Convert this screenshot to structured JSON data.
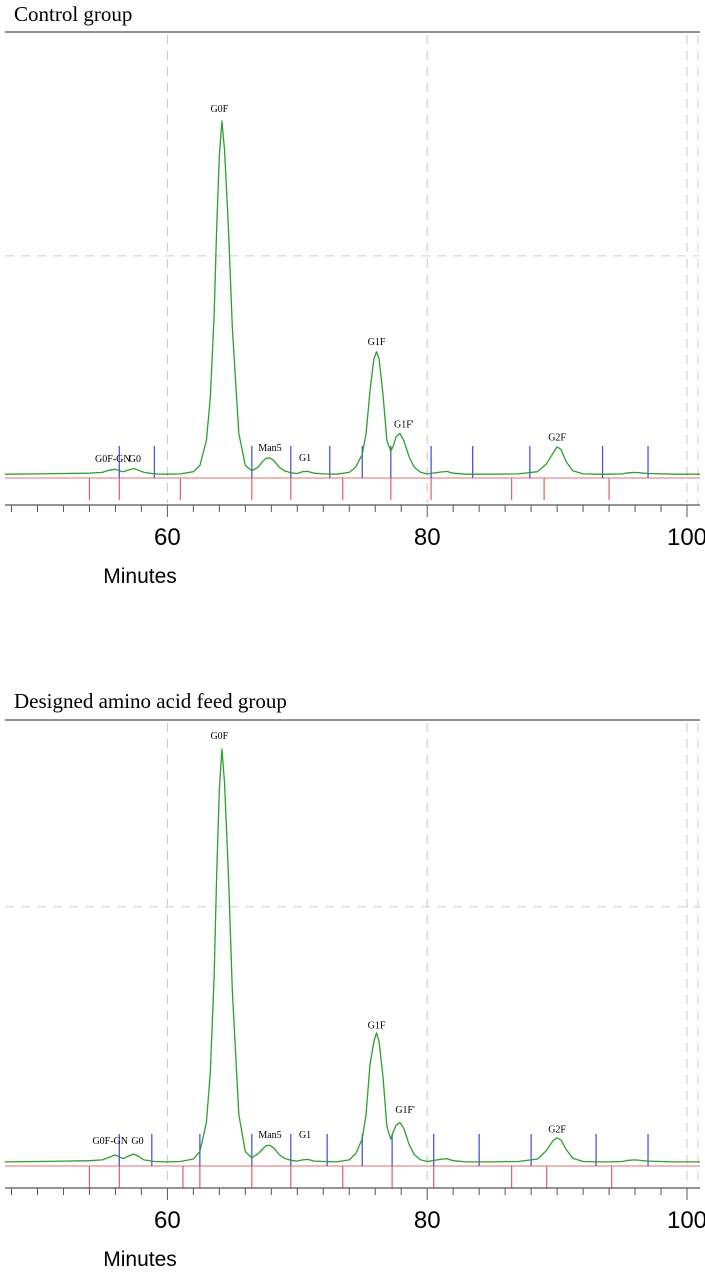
{
  "chart_data": [
    {
      "type": "line",
      "title": "Control group",
      "xlabel": "Minutes",
      "ylabel": "",
      "xlim": [
        47.5,
        101
      ],
      "ylim": [
        0,
        100
      ],
      "x_ticks": [
        60,
        80,
        100
      ],
      "x_tick_labels": [
        "60",
        "80",
        "100"
      ],
      "grid": true,
      "series": [
        {
          "color": "#2ca02c",
          "x": [
            47.5,
            50,
            52,
            54,
            55,
            55.5,
            56,
            56.3,
            56.6,
            57,
            57.4,
            57.8,
            58.2,
            59,
            60,
            61,
            62,
            62.5,
            63,
            63.3,
            63.6,
            63.8,
            64,
            64.2,
            64.4,
            64.7,
            65,
            65.5,
            66,
            66.5,
            67,
            67.3,
            67.6,
            67.9,
            68.2,
            68.6,
            69,
            69.5,
            70,
            70.4,
            70.8,
            71.3,
            72,
            73,
            74,
            74.5,
            75,
            75.3,
            75.6,
            75.9,
            76.1,
            76.3,
            76.6,
            76.9,
            77.2,
            77.4,
            77.6,
            77.9,
            78.2,
            78.6,
            79,
            79.5,
            80,
            81,
            81.5,
            82,
            83,
            85,
            87,
            88.5,
            89.2,
            89.7,
            90,
            90.3,
            90.7,
            91.2,
            92,
            93,
            94,
            95,
            95.5,
            96,
            97,
            99,
            101
          ],
          "y": [
            0.5,
            0.6,
            0.7,
            0.8,
            1.0,
            1.6,
            1.9,
            1.5,
            1.2,
            1.7,
            2.1,
            1.6,
            1.0,
            0.6,
            0.5,
            0.6,
            1.2,
            3.0,
            10,
            22,
            45,
            70,
            90,
            100,
            92,
            70,
            42,
            12,
            3,
            1.5,
            2.5,
            4.0,
            5.0,
            5.1,
            4.3,
            2.5,
            1.5,
            0.9,
            0.7,
            1.2,
            1.3,
            0.8,
            0.6,
            0.5,
            1.0,
            2.5,
            6,
            12,
            24,
            33,
            35,
            33,
            23,
            10,
            7,
            8.5,
            11,
            12,
            10,
            5.5,
            2.5,
            1.0,
            0.6,
            1.1,
            1.3,
            0.8,
            0.5,
            0.5,
            0.6,
            1.2,
            3.5,
            6.5,
            8.2,
            7.5,
            4.0,
            1.5,
            0.6,
            0.5,
            0.5,
            0.6,
            0.9,
            1.0,
            0.7,
            0.5,
            0.5
          ]
        }
      ],
      "peak_labels": [
        {
          "text": "G0F-GN",
          "x": 55.8,
          "y": 3.9
        },
        {
          "text": "G0",
          "x": 57.5,
          "y": 3.9
        },
        {
          "text": "G0F",
          "x": 64.0,
          "y": 102.5
        },
        {
          "text": "Man5",
          "x": 67.9,
          "y": 7.0
        },
        {
          "text": "G1",
          "x": 70.6,
          "y": 4.2
        },
        {
          "text": "G1F",
          "x": 76.1,
          "y": 36.9
        },
        {
          "text": "G1F'",
          "x": 78.2,
          "y": 13.7
        },
        {
          "text": "G2F",
          "x": 90.0,
          "y": 10.0
        }
      ],
      "blue_markers": [
        56.3,
        59.0,
        66.5,
        69.5,
        72.5,
        75.0,
        77.2,
        80.3,
        83.5,
        87.9,
        93.5,
        97.0
      ],
      "red_markers": [
        54.0,
        56.3,
        61.0,
        66.5,
        69.5,
        73.5,
        77.2,
        80.3,
        86.5,
        89.0,
        94.0
      ]
    },
    {
      "type": "line",
      "title": "Designed amino acid feed group",
      "xlabel": "Minutes",
      "ylabel": "",
      "xlim": [
        47.5,
        101
      ],
      "ylim": [
        0,
        100
      ],
      "x_ticks": [
        60,
        80,
        100
      ],
      "x_tick_labels": [
        "60",
        "80",
        "100"
      ],
      "grid": true,
      "series": [
        {
          "color": "#2ca02c",
          "x": [
            47.5,
            50,
            52,
            54,
            55,
            55.5,
            56,
            56.3,
            56.6,
            57,
            57.4,
            57.8,
            58.2,
            59,
            60,
            61,
            62,
            62.5,
            63,
            63.3,
            63.6,
            63.8,
            64,
            64.2,
            64.4,
            64.7,
            65,
            65.5,
            66,
            66.5,
            67,
            67.3,
            67.6,
            67.9,
            68.2,
            68.6,
            69,
            69.5,
            70,
            70.4,
            70.8,
            71.3,
            72,
            73,
            74,
            74.5,
            75,
            75.3,
            75.6,
            75.9,
            76.1,
            76.3,
            76.6,
            76.9,
            77.2,
            77.4,
            77.6,
            77.9,
            78.2,
            78.6,
            79,
            79.5,
            80,
            81,
            81.5,
            82,
            83,
            85,
            87,
            88.5,
            89.2,
            89.7,
            90,
            90.3,
            90.7,
            91.2,
            92,
            93,
            94,
            95,
            95.5,
            96,
            97,
            99,
            101
          ],
          "y": [
            0.5,
            0.6,
            0.7,
            0.8,
            1.0,
            1.6,
            2.2,
            1.7,
            1.3,
            1.9,
            2.4,
            1.8,
            1.0,
            0.6,
            0.5,
            0.6,
            1.2,
            3.0,
            10,
            22,
            45,
            70,
            90,
            100,
            92,
            70,
            42,
            12,
            3,
            1.5,
            2.5,
            3.5,
            4.4,
            4.5,
            3.8,
            2.3,
            1.4,
            0.9,
            0.7,
            1.0,
            1.1,
            0.7,
            0.6,
            0.5,
            1.0,
            2.5,
            6,
            12,
            24,
            29.5,
            31.6,
            29.5,
            21,
            9,
            6,
            7.8,
            9.3,
            10,
            8.6,
            4.8,
            2.3,
            1.0,
            0.6,
            1.1,
            1.3,
            0.8,
            0.5,
            0.5,
            0.6,
            1.2,
            3.3,
            5.7,
            6.3,
            5.8,
            3.5,
            1.4,
            0.6,
            0.5,
            0.5,
            0.6,
            0.9,
            1.0,
            0.7,
            0.5,
            0.5
          ]
        }
      ],
      "peak_labels": [
        {
          "text": "G0F-GN",
          "x": 55.6,
          "y": 4.8
        },
        {
          "text": "G0",
          "x": 57.7,
          "y": 4.8
        },
        {
          "text": "G0F",
          "x": 64.0,
          "y": 102.4
        },
        {
          "text": "Man5",
          "x": 67.9,
          "y": 6.3
        },
        {
          "text": "G1",
          "x": 70.6,
          "y": 6.3
        },
        {
          "text": "G1F",
          "x": 76.1,
          "y": 32.6
        },
        {
          "text": "G1F'",
          "x": 78.3,
          "y": 12.3
        },
        {
          "text": "G2F",
          "x": 90.0,
          "y": 7.6
        }
      ],
      "blue_markers": [
        56.3,
        58.8,
        62.5,
        66.5,
        69.5,
        72.3,
        75.0,
        77.3,
        80.5,
        84.0,
        88.0,
        93.0,
        97.0
      ],
      "red_markers": [
        54.0,
        56.3,
        61.2,
        62.5,
        66.5,
        69.5,
        73.5,
        77.3,
        80.5,
        86.5,
        89.2,
        94.2
      ]
    }
  ]
}
